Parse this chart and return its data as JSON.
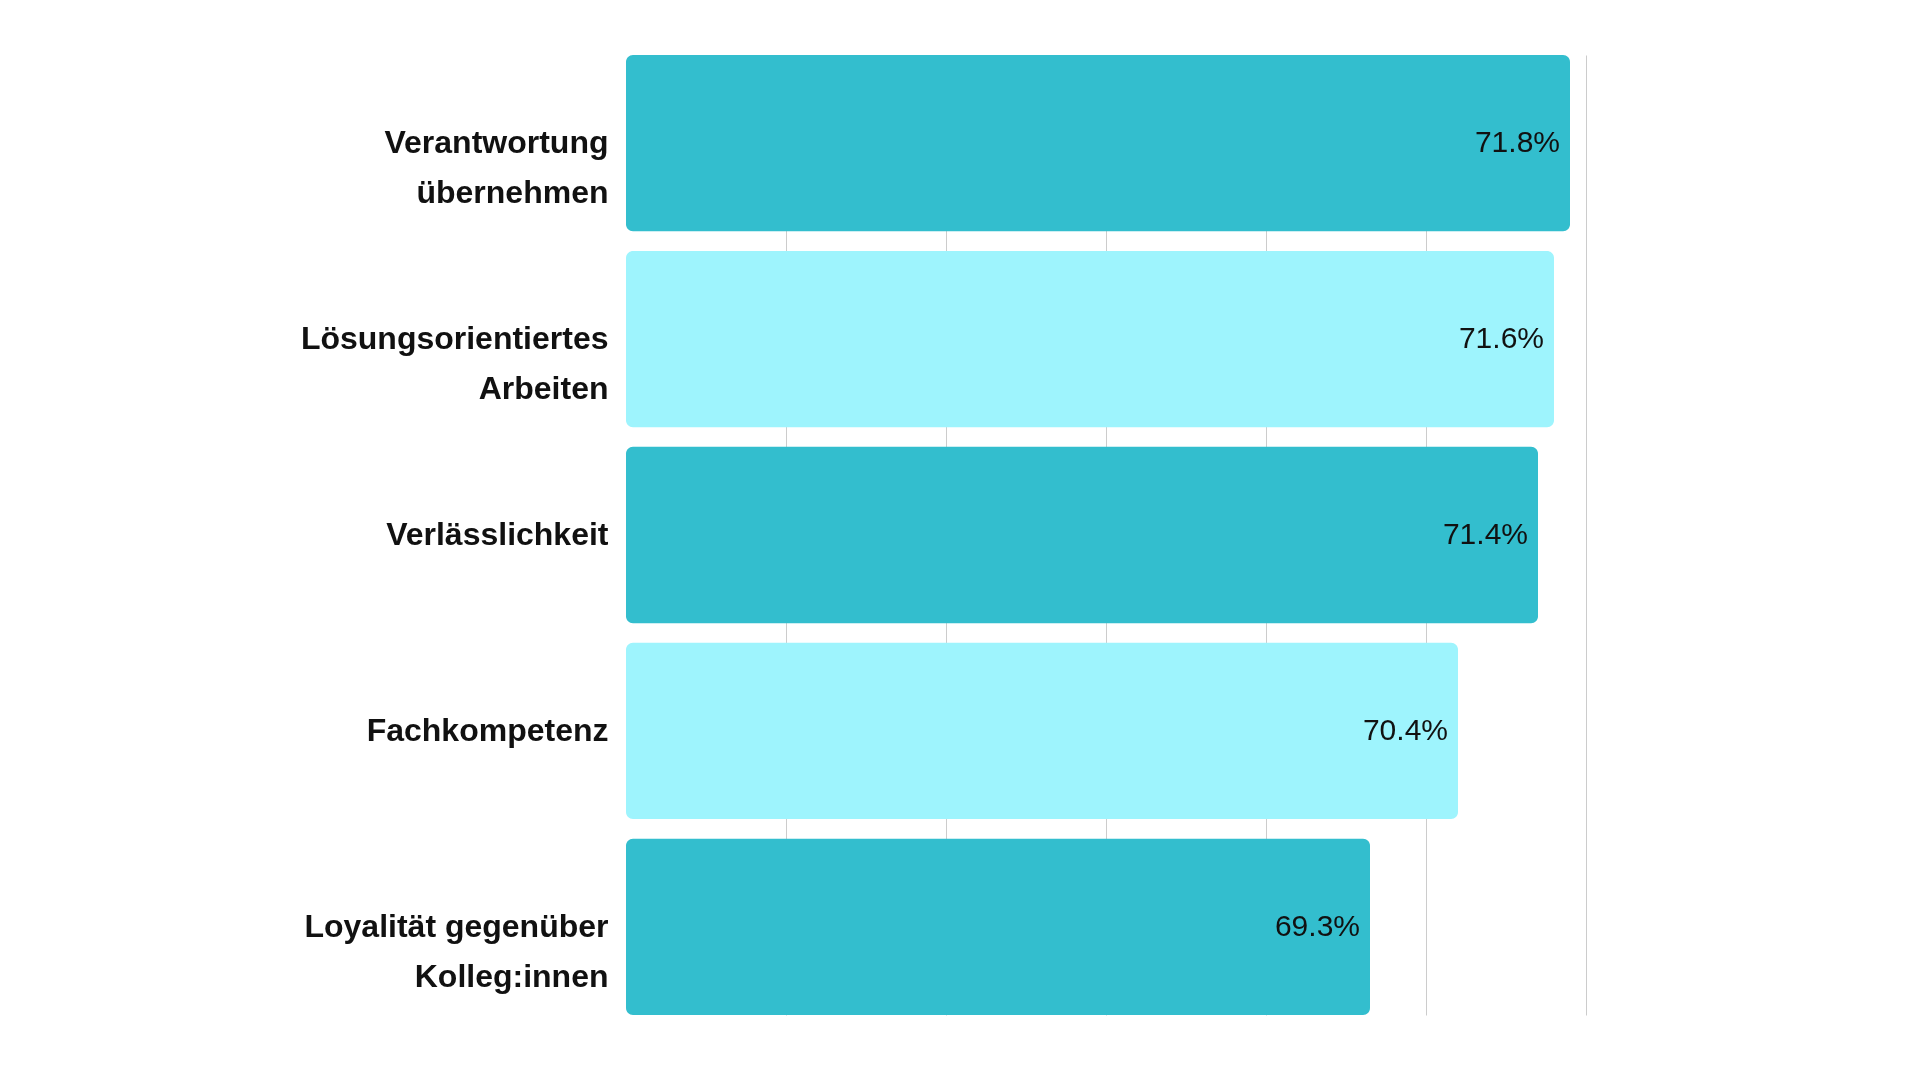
{
  "chart_data": {
    "type": "bar",
    "orientation": "horizontal",
    "categories": [
      "Verantwortung übernehmen",
      "Lösungsorientiertes Arbeiten",
      "Verlässlichkeit",
      "Fachkompetenz",
      "Loyalität gegenüber Kolleg:innen"
    ],
    "values": [
      71.8,
      71.6,
      71.4,
      70.4,
      69.3
    ],
    "value_labels": [
      "71.8%",
      "71.6%",
      "71.4%",
      "70.4%",
      "69.3%"
    ],
    "colors": [
      "#33bece",
      "#9ef4fd",
      "#33bece",
      "#9ef4fd",
      "#33bece"
    ],
    "xlim": [
      60,
      72
    ],
    "xticks": [
      {
        "value": 62,
        "label": null
      },
      {
        "value": 64,
        "label": null
      },
      {
        "value": 66,
        "label": null
      },
      {
        "value": 68,
        "label": null
      },
      {
        "value": 70,
        "label": null
      },
      {
        "value": 72,
        "label": null
      }
    ],
    "grid": "x",
    "tick_labels": "y"
  }
}
